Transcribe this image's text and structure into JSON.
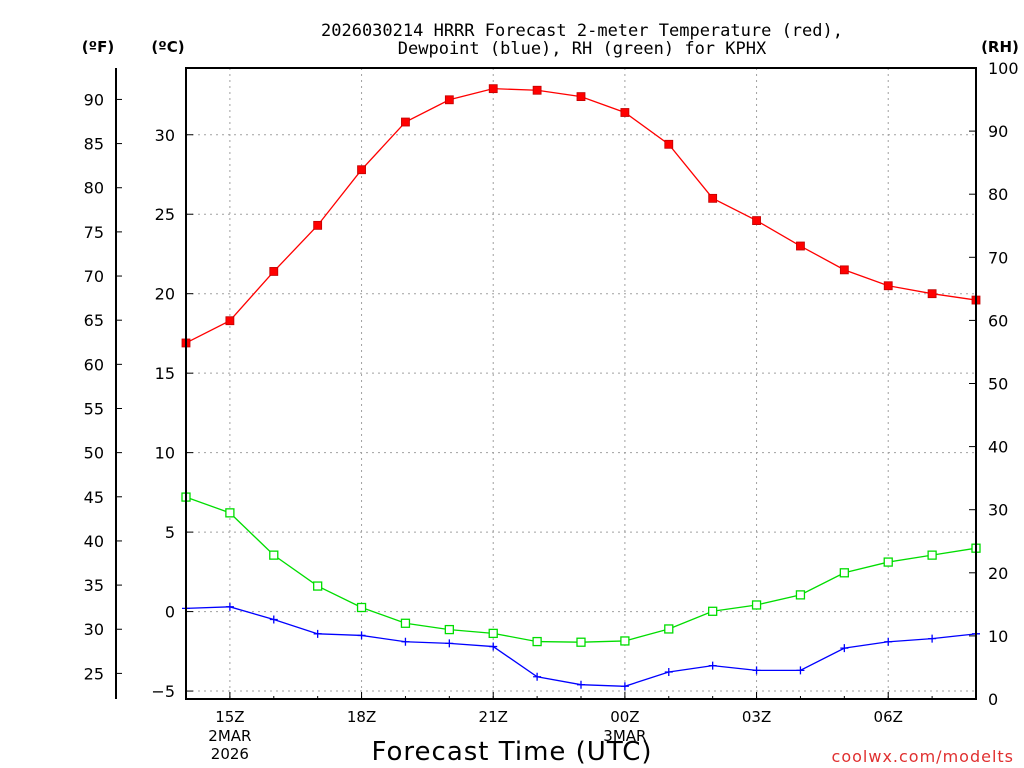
{
  "chart_data": {
    "type": "line",
    "title_line1": "2026030214 HRRR Forecast 2-meter Temperature (red),",
    "title_line2": "Dewpoint (blue), RH (green) for KPHX",
    "xlabel": "Forecast Time (UTC)",
    "watermark": "coolwx.com/modelts",
    "unit_f": "(ºF)",
    "unit_c": "(ºC)",
    "unit_rh": "(RH)",
    "x_hours": [
      14,
      15,
      16,
      17,
      18,
      19,
      20,
      21,
      22,
      23,
      24,
      25,
      26,
      27,
      28,
      29,
      30,
      31,
      32
    ],
    "x_ticks": [
      {
        "hour": 15,
        "label": "15Z",
        "sub1": "2MAR",
        "sub2": "2026"
      },
      {
        "hour": 18,
        "label": "18Z",
        "sub1": "",
        "sub2": ""
      },
      {
        "hour": 21,
        "label": "21Z",
        "sub1": "",
        "sub2": ""
      },
      {
        "hour": 24,
        "label": "00Z",
        "sub1": "3MAR",
        "sub2": ""
      },
      {
        "hour": 27,
        "label": "03Z",
        "sub1": "",
        "sub2": ""
      },
      {
        "hour": 30,
        "label": "06Z",
        "sub1": "",
        "sub2": ""
      }
    ],
    "ylim_c": [
      -5.5,
      34.2
    ],
    "ylim_rh": [
      0,
      100
    ],
    "yticks_c": [
      -5,
      0,
      5,
      10,
      15,
      20,
      25,
      30
    ],
    "yticks_c_labels": [
      "−5",
      "0",
      "5",
      "10",
      "15",
      "20",
      "25",
      "30"
    ],
    "yticks_f": [
      25,
      30,
      35,
      40,
      45,
      50,
      55,
      60,
      65,
      70,
      75,
      80,
      85,
      90
    ],
    "yticks_rh": [
      0,
      10,
      20,
      30,
      40,
      50,
      60,
      70,
      80,
      90,
      100
    ],
    "series": [
      {
        "name": "Temperature",
        "color": "#ff0000",
        "axis": "c",
        "marker": "filled-square",
        "values": [
          16.9,
          18.3,
          21.4,
          24.3,
          27.8,
          30.8,
          32.2,
          32.9,
          32.8,
          32.4,
          31.4,
          29.4,
          26.0,
          24.6,
          23.0,
          21.5,
          20.5,
          20.0,
          19.6
        ]
      },
      {
        "name": "Dewpoint",
        "color": "#0000ff",
        "axis": "c",
        "marker": "plus",
        "values": [
          0.2,
          0.3,
          -0.5,
          -1.4,
          -1.5,
          -1.9,
          -2.0,
          -2.2,
          -4.1,
          -4.6,
          -4.7,
          -3.8,
          -3.4,
          -3.7,
          -3.7,
          -2.3,
          -1.9,
          -1.7,
          -1.4
        ]
      },
      {
        "name": "RH",
        "color": "#00dd00",
        "axis": "rh",
        "marker": "open-square",
        "values": [
          32,
          29.5,
          22.8,
          17.9,
          14.5,
          12,
          11,
          10.4,
          9.1,
          9,
          9.2,
          11.1,
          13.9,
          14.9,
          16.5,
          20,
          21.7,
          22.8,
          23.9
        ]
      }
    ]
  }
}
